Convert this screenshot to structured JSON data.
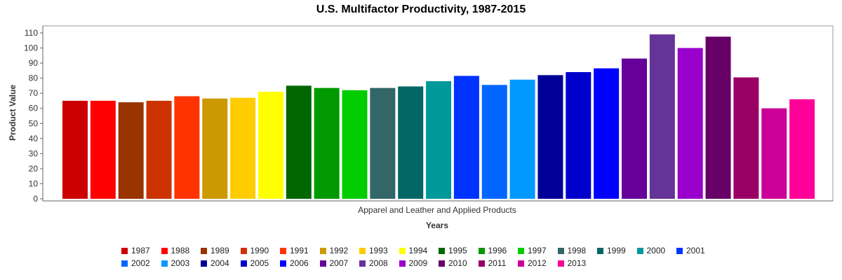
{
  "chart_data": {
    "type": "bar",
    "title": "U.S. Multifactor Productivity, 1987-2015",
    "xlabel": "Years",
    "ylabel": "Product Value",
    "category_label": "Apparel and Leather and Applied Products",
    "ylim": [
      0,
      115
    ],
    "yticks": [
      0,
      10,
      20,
      30,
      40,
      50,
      60,
      70,
      80,
      90,
      100,
      110
    ],
    "grid": false,
    "legend_position": "bottom",
    "series": [
      {
        "name": "1987",
        "value": 65,
        "color": "#cc0000"
      },
      {
        "name": "1988",
        "value": 65,
        "color": "#ff0000"
      },
      {
        "name": "1989",
        "value": 64,
        "color": "#993300"
      },
      {
        "name": "1990",
        "value": 65,
        "color": "#cc3300"
      },
      {
        "name": "1991",
        "value": 68,
        "color": "#ff3300"
      },
      {
        "name": "1992",
        "value": 66.5,
        "color": "#cc9900"
      },
      {
        "name": "1993",
        "value": 67,
        "color": "#ffcc00"
      },
      {
        "name": "1994",
        "value": 71,
        "color": "#ffff00"
      },
      {
        "name": "1995",
        "value": 75,
        "color": "#006600"
      },
      {
        "name": "1996",
        "value": 73.5,
        "color": "#009900"
      },
      {
        "name": "1997",
        "value": 72,
        "color": "#00cc00"
      },
      {
        "name": "1998",
        "value": 73.5,
        "color": "#336666"
      },
      {
        "name": "1999",
        "value": 74.5,
        "color": "#006666"
      },
      {
        "name": "2000",
        "value": 78,
        "color": "#009999"
      },
      {
        "name": "2001",
        "value": 81.5,
        "color": "#0033ff"
      },
      {
        "name": "2002",
        "value": 75.5,
        "color": "#0066ff"
      },
      {
        "name": "2003",
        "value": 79,
        "color": "#0099ff"
      },
      {
        "name": "2004",
        "value": 82,
        "color": "#000099"
      },
      {
        "name": "2005",
        "value": 84,
        "color": "#0000cc"
      },
      {
        "name": "2006",
        "value": 86.5,
        "color": "#0000ff"
      },
      {
        "name": "2007",
        "value": 93,
        "color": "#660099"
      },
      {
        "name": "2008",
        "value": 109,
        "color": "#663399"
      },
      {
        "name": "2009",
        "value": 100,
        "color": "#9900cc"
      },
      {
        "name": "2010",
        "value": 107.5,
        "color": "#660066"
      },
      {
        "name": "2011",
        "value": 80.5,
        "color": "#990066"
      },
      {
        "name": "2012",
        "value": 60,
        "color": "#cc0099"
      },
      {
        "name": "2013",
        "value": 66,
        "color": "#ff0099"
      }
    ]
  }
}
